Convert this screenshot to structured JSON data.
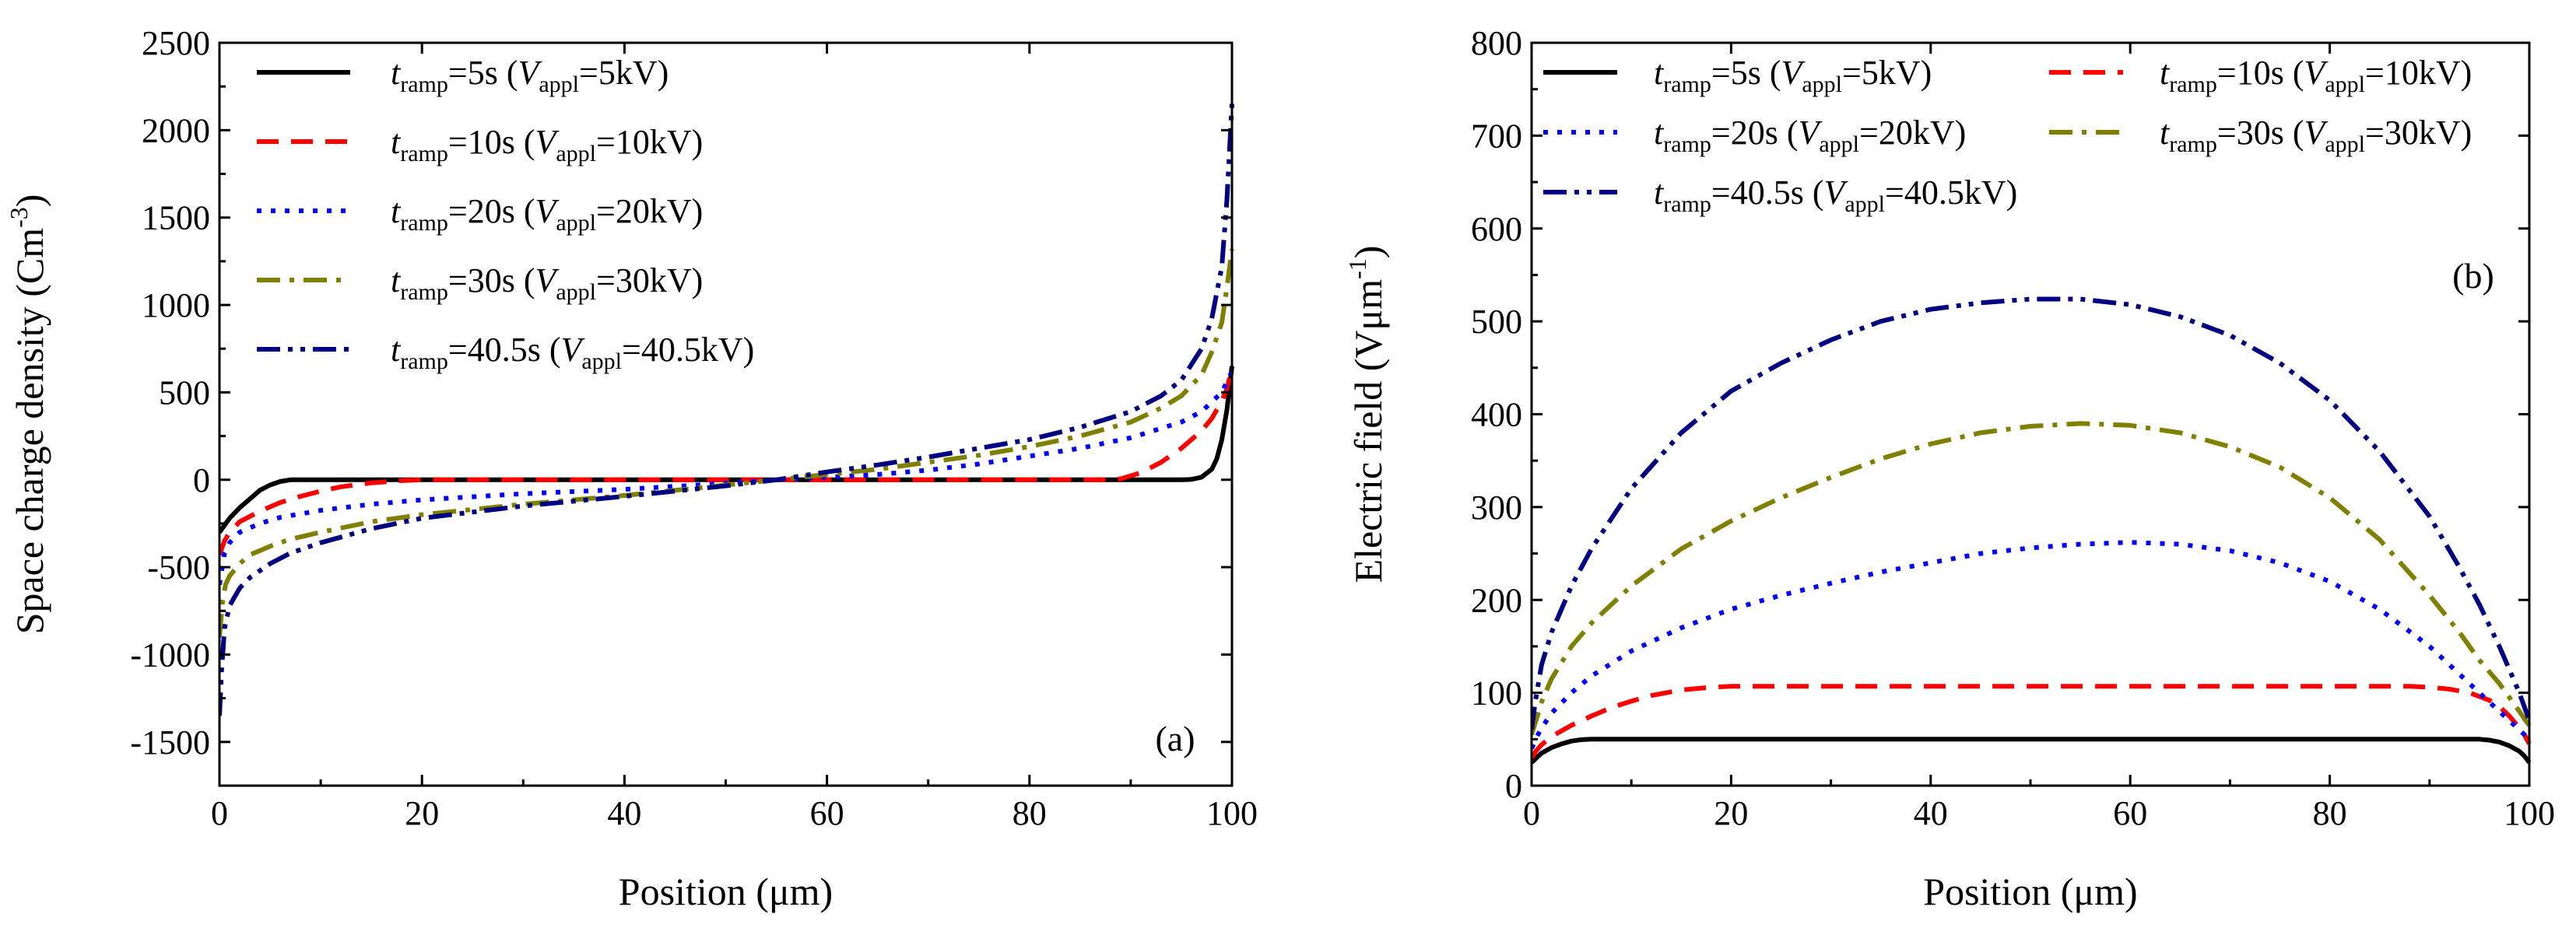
{
  "chart_data": [
    {
      "type": "line",
      "panel_label": "(a)",
      "xlabel": "Position (μm)",
      "ylabel": "Space charge density (Cm-3)",
      "ylabel_text": "Space charge density (Cm",
      "ylabel_sup": "-3",
      "ylabel_close": ")",
      "xlim": [
        0,
        100
      ],
      "ylim": [
        -1750,
        2500
      ],
      "xticks": [
        0,
        20,
        40,
        60,
        80,
        100
      ],
      "yticks": [
        -1500,
        -1000,
        -500,
        0,
        500,
        1000,
        1500,
        2000,
        2500
      ],
      "grid": false,
      "legend_position": "top-left",
      "series": [
        {
          "name": "t_ramp=5s (V_appl=5kV)",
          "legend": {
            "t": "t",
            "t_sub": "ramp",
            "eq1": "=5s (",
            "v": "V",
            "v_sub": "appl",
            "eq2": "=5kV)"
          },
          "color": "#000000",
          "style": "solid",
          "x": [
            0,
            0.5,
            1,
            2,
            3,
            4,
            5,
            6,
            7,
            10,
            20,
            40,
            60,
            80,
            90,
            95,
            96,
            97,
            98,
            98.5,
            99,
            99.5,
            100
          ],
          "y": [
            -300,
            -260,
            -220,
            -160,
            -110,
            -60,
            -30,
            -10,
            0,
            0,
            0,
            0,
            0,
            0,
            0,
            0,
            2,
            15,
            60,
            120,
            230,
            400,
            650
          ]
        },
        {
          "name": "t_ramp=10s (V_appl=10kV)",
          "legend": {
            "t": "t",
            "t_sub": "ramp",
            "eq1": "=10s (",
            "v": "V",
            "v_sub": "appl",
            "eq2": "=10kV)"
          },
          "color": "#ff0000",
          "style": "dash",
          "x": [
            0,
            0.5,
            1,
            2,
            4,
            6,
            8,
            10,
            12,
            15,
            18,
            20,
            40,
            60,
            80,
            88,
            89,
            91,
            93,
            95,
            97,
            98,
            99,
            99.5,
            100
          ],
          "y": [
            -430,
            -350,
            -300,
            -240,
            -180,
            -130,
            -95,
            -65,
            -40,
            -18,
            -5,
            0,
            0,
            0,
            0,
            0,
            5,
            40,
            100,
            180,
            280,
            350,
            450,
            520,
            640
          ]
        },
        {
          "name": "t_ramp=20s (V_appl=20kV)",
          "legend": {
            "t": "t",
            "t_sub": "ramp",
            "eq1": "=20s (",
            "v": "V",
            "v_sub": "appl",
            "eq2": "=20kV)"
          },
          "color": "#0000ff",
          "style": "dot",
          "x": [
            0,
            0.5,
            1,
            2,
            4,
            6,
            10,
            15,
            20,
            30,
            40,
            50,
            55,
            60,
            65,
            70,
            75,
            80,
            85,
            90,
            95,
            97,
            99,
            100
          ],
          "y": [
            -600,
            -420,
            -360,
            -300,
            -250,
            -215,
            -175,
            -140,
            -115,
            -80,
            -55,
            -20,
            0,
            15,
            30,
            55,
            90,
            135,
            180,
            240,
            330,
            390,
            500,
            620
          ]
        },
        {
          "name": "t_ramp=30s (V_appl=30kV)",
          "legend": {
            "t": "t",
            "t_sub": "ramp",
            "eq1": "=30s (",
            "v": "V",
            "v_sub": "appl",
            "eq2": "=30kV)"
          },
          "color": "#808000",
          "style": "dashdot",
          "x": [
            0,
            0.3,
            0.6,
            1,
            2,
            3,
            5,
            7,
            10,
            15,
            20,
            30,
            40,
            50,
            55,
            60,
            65,
            70,
            75,
            80,
            85,
            90,
            93,
            95,
            97,
            98,
            99,
            99.5,
            100
          ],
          "y": [
            -900,
            -700,
            -600,
            -550,
            -480,
            -430,
            -380,
            -340,
            -300,
            -240,
            -200,
            -140,
            -90,
            -30,
            0,
            30,
            60,
            100,
            140,
            190,
            250,
            330,
            410,
            480,
            600,
            730,
            900,
            1100,
            1320
          ]
        },
        {
          "name": "t_ramp=40.5s (V_appl=40.5kV)",
          "legend": {
            "t": "t",
            "t_sub": "ramp",
            "eq1": "=40.5s (",
            "v": "V",
            "v_sub": "appl",
            "eq2": "=40.5kV)"
          },
          "color": "#000080",
          "style": "dashdotdot",
          "x": [
            0,
            0.2,
            0.5,
            1,
            2,
            3,
            5,
            7,
            10,
            15,
            20,
            30,
            40,
            50,
            55,
            60,
            65,
            70,
            75,
            80,
            85,
            90,
            93,
            95,
            97,
            98,
            99,
            99.5,
            100
          ],
          "y": [
            -1350,
            -1100,
            -850,
            -720,
            -620,
            -560,
            -480,
            -420,
            -360,
            -280,
            -220,
            -150,
            -95,
            -35,
            0,
            45,
            85,
            130,
            180,
            230,
            300,
            390,
            480,
            570,
            750,
            920,
            1220,
            1600,
            2150
          ]
        }
      ]
    },
    {
      "type": "line",
      "panel_label": "(b)",
      "xlabel": "Position (μm)",
      "ylabel": "Electric field (Vμm-1)",
      "ylabel_text": "Electric field (Vμm",
      "ylabel_sup": "-1",
      "ylabel_close": ")",
      "xlim": [
        0,
        100
      ],
      "ylim": [
        0,
        800
      ],
      "xticks": [
        0,
        20,
        40,
        60,
        80,
        100
      ],
      "yticks": [
        0,
        100,
        200,
        300,
        400,
        500,
        600,
        700,
        800
      ],
      "grid": false,
      "legend_position": "top",
      "series": [
        {
          "name": "t_ramp=5s (V_appl=5kV)",
          "legend": {
            "t": "t",
            "t_sub": "ramp",
            "eq1": "=5s (",
            "v": "V",
            "v_sub": "appl",
            "eq2": "=5kV)"
          },
          "color": "#000000",
          "style": "solid",
          "x": [
            0,
            0.5,
            1,
            2,
            3,
            4,
            5,
            6,
            7,
            10,
            50,
            90,
            95,
            96,
            97,
            98,
            99,
            99.5,
            100
          ],
          "y": [
            25,
            30,
            35,
            41,
            45,
            48,
            49.5,
            50,
            50,
            50,
            50,
            50,
            50,
            49,
            47,
            43,
            37,
            32,
            25
          ]
        },
        {
          "name": "t_ramp=10s (V_appl=10kV)",
          "legend": {
            "t": "t",
            "t_sub": "ramp",
            "eq1": "=10s (",
            "v": "V",
            "v_sub": "appl",
            "eq2": "=10kV)"
          },
          "color": "#ff0000",
          "style": "dash",
          "x": [
            0,
            0.5,
            1,
            2,
            4,
            6,
            8,
            10,
            12,
            15,
            18,
            20,
            50,
            88,
            90,
            92,
            94,
            96,
            97,
            98,
            99,
            99.5,
            100
          ],
          "y": [
            30,
            38,
            44,
            53,
            65,
            75,
            84,
            91,
            97,
            103,
            106,
            107,
            107,
            107,
            106,
            104,
            100,
            92,
            85,
            75,
            62,
            55,
            45
          ]
        },
        {
          "name": "t_ramp=20s (V_appl=20kV)",
          "legend": {
            "t": "t",
            "t_sub": "ramp",
            "eq1": "=20s (",
            "v": "V",
            "v_sub": "appl",
            "eq2": "=20kV)"
          },
          "color": "#0000ff",
          "style": "dot",
          "x": [
            0,
            0.5,
            1,
            2,
            4,
            6,
            10,
            15,
            20,
            25,
            30,
            35,
            40,
            45,
            50,
            55,
            60,
            65,
            70,
            75,
            80,
            85,
            90,
            94,
            96,
            98,
            99,
            100
          ],
          "y": [
            40,
            52,
            62,
            78,
            100,
            118,
            145,
            170,
            190,
            205,
            218,
            230,
            240,
            250,
            256,
            260,
            262,
            260,
            253,
            240,
            220,
            190,
            150,
            110,
            90,
            70,
            60,
            50
          ]
        },
        {
          "name": "t_ramp=30s (V_appl=30kV)",
          "legend": {
            "t": "t",
            "t_sub": "ramp",
            "eq1": "=30s (",
            "v": "V",
            "v_sub": "appl",
            "eq2": "=30kV)"
          },
          "color": "#808000",
          "style": "dashdot",
          "x": [
            0,
            0.5,
            1,
            2,
            4,
            6,
            10,
            15,
            20,
            25,
            30,
            35,
            40,
            45,
            50,
            55,
            60,
            65,
            70,
            75,
            80,
            85,
            90,
            93,
            95,
            97,
            98,
            99,
            99.5,
            100
          ],
          "y": [
            55,
            72,
            90,
            115,
            150,
            175,
            215,
            255,
            285,
            310,
            332,
            352,
            368,
            380,
            387,
            390,
            388,
            380,
            365,
            343,
            310,
            265,
            205,
            165,
            135,
            110,
            95,
            80,
            72,
            65
          ]
        },
        {
          "name": "t_ramp=40.5s (V_appl=40.5kV)",
          "legend": {
            "t": "t",
            "t_sub": "ramp",
            "eq1": "=40.5s (",
            "v": "V",
            "v_sub": "appl",
            "eq2": "=40.5kV)"
          },
          "color": "#000080",
          "style": "dashdotdot",
          "x": [
            0,
            0.3,
            0.6,
            1,
            2,
            4,
            6,
            10,
            15,
            20,
            25,
            30,
            35,
            40,
            45,
            50,
            55,
            60,
            65,
            70,
            75,
            80,
            85,
            90,
            93,
            95,
            97,
            98,
            99,
            99.5,
            100
          ],
          "y": [
            60,
            85,
            105,
            130,
            165,
            215,
            255,
            320,
            380,
            425,
            455,
            480,
            500,
            513,
            520,
            524,
            524,
            518,
            505,
            485,
            455,
            415,
            360,
            290,
            235,
            195,
            150,
            125,
            100,
            85,
            70
          ]
        }
      ]
    }
  ]
}
